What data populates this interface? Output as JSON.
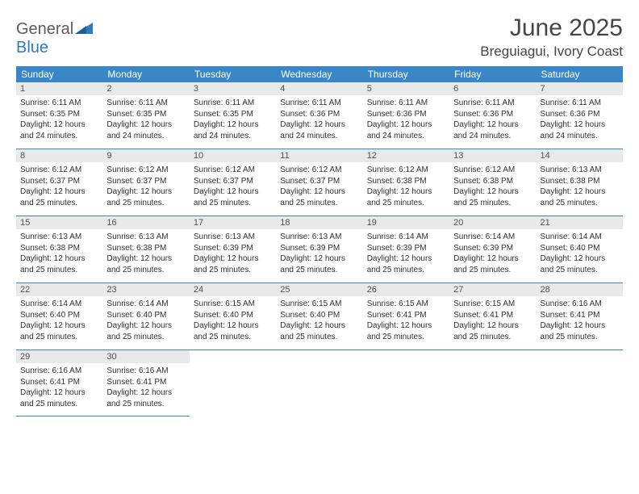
{
  "logo": {
    "word1": "General",
    "word2": "Blue"
  },
  "title": "June 2025",
  "location": "Breguiagui, Ivory Coast",
  "colors": {
    "header_bg": "#3b86c6",
    "header_text": "#ffffff",
    "daynum_bg": "#e9e9e9",
    "daynum_text": "#505050",
    "body_text": "#303030",
    "row_border": "#3b86c6",
    "logo_gray": "#5b5b5b",
    "logo_blue": "#2f7bbf",
    "title_color": "#454545",
    "page_bg": "#ffffff"
  },
  "typography": {
    "title_fontsize": 30,
    "location_fontsize": 17,
    "dayheader_fontsize": 12,
    "daynum_fontsize": 11,
    "body_fontsize": 10
  },
  "day_headers": [
    "Sunday",
    "Monday",
    "Tuesday",
    "Wednesday",
    "Thursday",
    "Friday",
    "Saturday"
  ],
  "weeks": [
    [
      {
        "n": "1",
        "sunrise": "6:11 AM",
        "sunset": "6:35 PM",
        "daylight": "12 hours and 24 minutes."
      },
      {
        "n": "2",
        "sunrise": "6:11 AM",
        "sunset": "6:35 PM",
        "daylight": "12 hours and 24 minutes."
      },
      {
        "n": "3",
        "sunrise": "6:11 AM",
        "sunset": "6:35 PM",
        "daylight": "12 hours and 24 minutes."
      },
      {
        "n": "4",
        "sunrise": "6:11 AM",
        "sunset": "6:36 PM",
        "daylight": "12 hours and 24 minutes."
      },
      {
        "n": "5",
        "sunrise": "6:11 AM",
        "sunset": "6:36 PM",
        "daylight": "12 hours and 24 minutes."
      },
      {
        "n": "6",
        "sunrise": "6:11 AM",
        "sunset": "6:36 PM",
        "daylight": "12 hours and 24 minutes."
      },
      {
        "n": "7",
        "sunrise": "6:11 AM",
        "sunset": "6:36 PM",
        "daylight": "12 hours and 24 minutes."
      }
    ],
    [
      {
        "n": "8",
        "sunrise": "6:12 AM",
        "sunset": "6:37 PM",
        "daylight": "12 hours and 25 minutes."
      },
      {
        "n": "9",
        "sunrise": "6:12 AM",
        "sunset": "6:37 PM",
        "daylight": "12 hours and 25 minutes."
      },
      {
        "n": "10",
        "sunrise": "6:12 AM",
        "sunset": "6:37 PM",
        "daylight": "12 hours and 25 minutes."
      },
      {
        "n": "11",
        "sunrise": "6:12 AM",
        "sunset": "6:37 PM",
        "daylight": "12 hours and 25 minutes."
      },
      {
        "n": "12",
        "sunrise": "6:12 AM",
        "sunset": "6:38 PM",
        "daylight": "12 hours and 25 minutes."
      },
      {
        "n": "13",
        "sunrise": "6:12 AM",
        "sunset": "6:38 PM",
        "daylight": "12 hours and 25 minutes."
      },
      {
        "n": "14",
        "sunrise": "6:13 AM",
        "sunset": "6:38 PM",
        "daylight": "12 hours and 25 minutes."
      }
    ],
    [
      {
        "n": "15",
        "sunrise": "6:13 AM",
        "sunset": "6:38 PM",
        "daylight": "12 hours and 25 minutes."
      },
      {
        "n": "16",
        "sunrise": "6:13 AM",
        "sunset": "6:38 PM",
        "daylight": "12 hours and 25 minutes."
      },
      {
        "n": "17",
        "sunrise": "6:13 AM",
        "sunset": "6:39 PM",
        "daylight": "12 hours and 25 minutes."
      },
      {
        "n": "18",
        "sunrise": "6:13 AM",
        "sunset": "6:39 PM",
        "daylight": "12 hours and 25 minutes."
      },
      {
        "n": "19",
        "sunrise": "6:14 AM",
        "sunset": "6:39 PM",
        "daylight": "12 hours and 25 minutes."
      },
      {
        "n": "20",
        "sunrise": "6:14 AM",
        "sunset": "6:39 PM",
        "daylight": "12 hours and 25 minutes."
      },
      {
        "n": "21",
        "sunrise": "6:14 AM",
        "sunset": "6:40 PM",
        "daylight": "12 hours and 25 minutes."
      }
    ],
    [
      {
        "n": "22",
        "sunrise": "6:14 AM",
        "sunset": "6:40 PM",
        "daylight": "12 hours and 25 minutes."
      },
      {
        "n": "23",
        "sunrise": "6:14 AM",
        "sunset": "6:40 PM",
        "daylight": "12 hours and 25 minutes."
      },
      {
        "n": "24",
        "sunrise": "6:15 AM",
        "sunset": "6:40 PM",
        "daylight": "12 hours and 25 minutes."
      },
      {
        "n": "25",
        "sunrise": "6:15 AM",
        "sunset": "6:40 PM",
        "daylight": "12 hours and 25 minutes."
      },
      {
        "n": "26",
        "sunrise": "6:15 AM",
        "sunset": "6:41 PM",
        "daylight": "12 hours and 25 minutes."
      },
      {
        "n": "27",
        "sunrise": "6:15 AM",
        "sunset": "6:41 PM",
        "daylight": "12 hours and 25 minutes."
      },
      {
        "n": "28",
        "sunrise": "6:16 AM",
        "sunset": "6:41 PM",
        "daylight": "12 hours and 25 minutes."
      }
    ],
    [
      {
        "n": "29",
        "sunrise": "6:16 AM",
        "sunset": "6:41 PM",
        "daylight": "12 hours and 25 minutes."
      },
      {
        "n": "30",
        "sunrise": "6:16 AM",
        "sunset": "6:41 PM",
        "daylight": "12 hours and 25 minutes."
      },
      null,
      null,
      null,
      null,
      null
    ]
  ],
  "labels": {
    "sunrise": "Sunrise:",
    "sunset": "Sunset:",
    "daylight": "Daylight:"
  }
}
